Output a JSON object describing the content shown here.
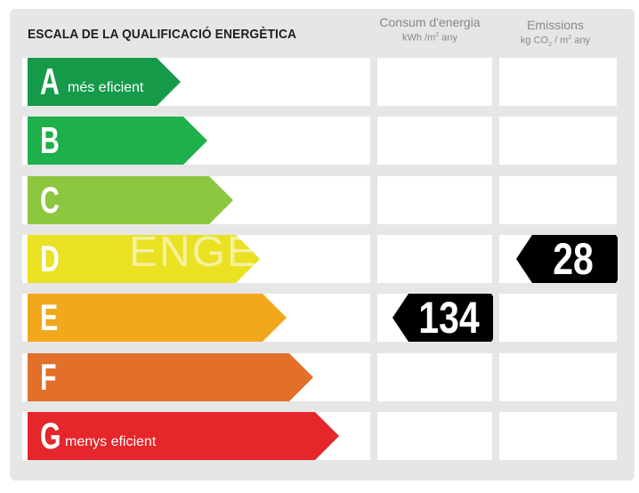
{
  "chart_data": {
    "type": "energy-rating",
    "title": "ESCALA DE LA QUALIFICACIÓ ENERGÈTICA",
    "columns": [
      {
        "title": "Consum d'energia",
        "unit_pre": "kWh /m",
        "unit_sup": "2",
        "unit_post": " any"
      },
      {
        "title": "Emissions",
        "unit_pre": "kg CO",
        "unit_sub": "2",
        "unit_mid": " / m",
        "unit_sup": "2",
        "unit_post": " any"
      }
    ],
    "classes": [
      {
        "letter": "A",
        "label": "més eficient",
        "color": "#159a4a"
      },
      {
        "letter": "B",
        "label": "",
        "color": "#1eb04a"
      },
      {
        "letter": "C",
        "label": "",
        "color": "#8dc63f"
      },
      {
        "letter": "D",
        "label": "",
        "color": "#e9e122"
      },
      {
        "letter": "E",
        "label": "",
        "color": "#f2a81d"
      },
      {
        "letter": "F",
        "label": "",
        "color": "#e2702a"
      },
      {
        "letter": "G",
        "label": "menys eficient",
        "color": "#e5262b"
      }
    ],
    "ratings": [
      {
        "column": 0,
        "class": "E",
        "value": "134"
      },
      {
        "column": 1,
        "class": "D",
        "value": "28"
      }
    ],
    "watermark": "ENGE"
  }
}
